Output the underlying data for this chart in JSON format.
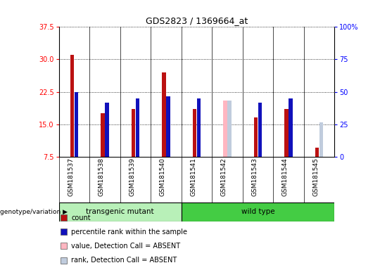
{
  "title": "GDS2823 / 1369664_at",
  "samples": [
    "GSM181537",
    "GSM181538",
    "GSM181539",
    "GSM181540",
    "GSM181541",
    "GSM181542",
    "GSM181543",
    "GSM181544",
    "GSM181545"
  ],
  "count_values": [
    31.0,
    17.5,
    18.5,
    27.0,
    18.5,
    null,
    16.5,
    18.5,
    9.5
  ],
  "rank_values": [
    22.5,
    20.0,
    21.0,
    21.5,
    21.0,
    null,
    20.0,
    21.0,
    null
  ],
  "absent_count_values": [
    null,
    null,
    null,
    null,
    null,
    20.5,
    null,
    null,
    null
  ],
  "absent_rank_values": [
    null,
    null,
    null,
    null,
    null,
    20.5,
    null,
    null,
    15.5
  ],
  "ylim_left": [
    7.5,
    37.5
  ],
  "ylim_right": [
    0,
    100
  ],
  "left_ticks": [
    7.5,
    15.0,
    22.5,
    30.0,
    37.5
  ],
  "right_ticks": [
    0,
    25,
    50,
    75,
    100
  ],
  "groups": [
    {
      "label": "transgenic mutant",
      "start": 0,
      "end": 3,
      "color": "#b8f0b8"
    },
    {
      "label": "wild type",
      "start": 4,
      "end": 8,
      "color": "#44cc44"
    }
  ],
  "count_color": "#bb1111",
  "rank_color": "#1111bb",
  "absent_count_color": "#ffb6c1",
  "absent_rank_color": "#c0ccdd",
  "plot_bg_color": "#ffffff",
  "sample_bg_color": "#cccccc",
  "bar_bottom": 7.5,
  "count_bar_width": 0.12,
  "rank_bar_width": 0.12,
  "legend_items": [
    {
      "label": "count",
      "color": "#bb1111"
    },
    {
      "label": "percentile rank within the sample",
      "color": "#1111bb"
    },
    {
      "label": "value, Detection Call = ABSENT",
      "color": "#ffb6c1"
    },
    {
      "label": "rank, Detection Call = ABSENT",
      "color": "#c0ccdd"
    }
  ]
}
